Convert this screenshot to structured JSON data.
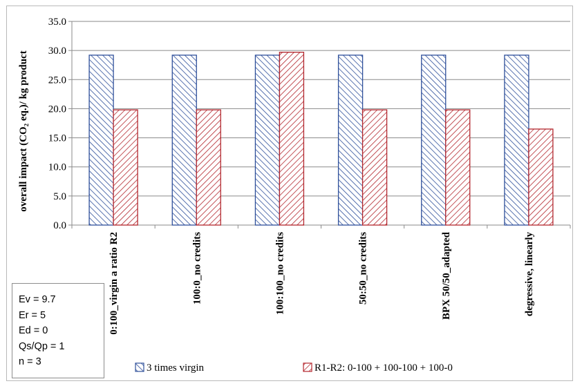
{
  "chart_data": {
    "type": "bar",
    "title": "",
    "xlabel": "",
    "ylabel": "overall impact (CO₂ eq.)/ kg product",
    "ylim": [
      0,
      35
    ],
    "yticks": [
      "0.0",
      "5.0",
      "10.0",
      "15.0",
      "20.0",
      "25.0",
      "30.0",
      "35.0"
    ],
    "grid": true,
    "legend_position": "bottom",
    "categories": [
      "0:100_virgin a ratio R2",
      "100:0_no credits",
      "100:100_no credits",
      "50:50_no credits",
      "BPX 50/50_adapted",
      "degressive, linearly"
    ],
    "series": [
      {
        "name": "3 times virgin",
        "color": "#2e4f9a",
        "pattern": "diagonal-hatch",
        "values": [
          29.2,
          29.2,
          29.2,
          29.2,
          29.2,
          29.2
        ]
      },
      {
        "name": "R1-R2: 0-100 + 100-100 + 100-0",
        "color": "#b3262d",
        "pattern": "diagonal-hatch",
        "values": [
          19.8,
          19.8,
          29.7,
          19.8,
          19.8,
          16.5
        ]
      }
    ]
  },
  "parameters": [
    "Ev = 9.7",
    "Er = 5",
    "Ed = 0",
    "Qs/Qp = 1",
    "n = 3"
  ]
}
